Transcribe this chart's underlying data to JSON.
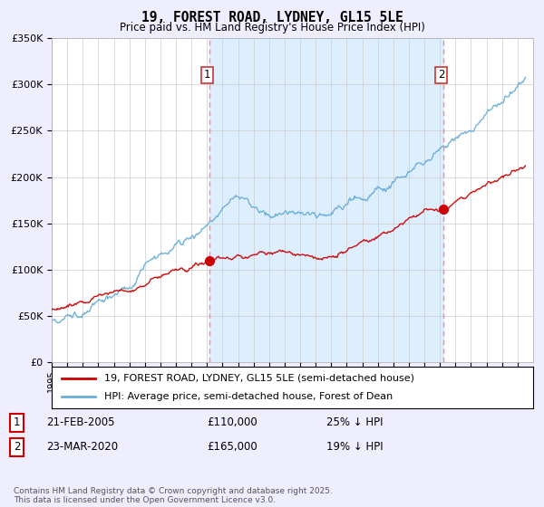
{
  "title": "19, FOREST ROAD, LYDNEY, GL15 5LE",
  "subtitle": "Price paid vs. HM Land Registry's House Price Index (HPI)",
  "legend_line1": "19, FOREST ROAD, LYDNEY, GL15 5LE (semi-detached house)",
  "legend_line2": "HPI: Average price, semi-detached house, Forest of Dean",
  "transaction1_label": "1",
  "transaction1_date": "21-FEB-2005",
  "transaction1_price": "£110,000",
  "transaction1_hpi": "25% ↓ HPI",
  "transaction2_label": "2",
  "transaction2_date": "23-MAR-2020",
  "transaction2_price": "£165,000",
  "transaction2_hpi": "19% ↓ HPI",
  "footer": "Contains HM Land Registry data © Crown copyright and database right 2025.\nThis data is licensed under the Open Government Licence v3.0.",
  "hpi_color": "#6baed6",
  "price_color": "#cc0000",
  "dashed_line_color": "#ff8888",
  "shade_color": "#ddeeff",
  "background_color": "#eeeeff",
  "plot_bg_color": "#ffffff",
  "ylim": [
    0,
    350000
  ],
  "yticks": [
    0,
    50000,
    100000,
    150000,
    200000,
    250000,
    300000,
    350000
  ],
  "marker1_x": 2005.15,
  "marker1_y": 110000,
  "marker2_x": 2020.22,
  "marker2_y": 165000,
  "xmin": 1995,
  "xmax": 2026
}
